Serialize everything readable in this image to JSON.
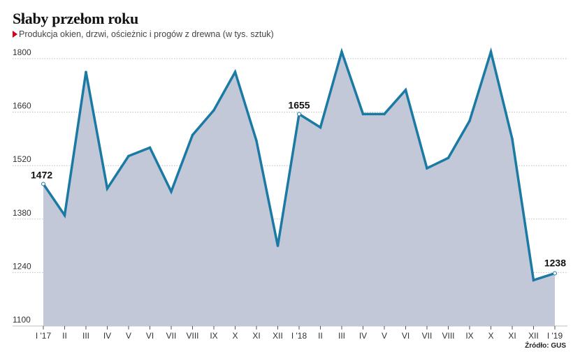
{
  "header": {
    "title": "Słaby przełom roku",
    "subtitle": "Produkcja okien, drzwi, ościeżnic i progów z drewna (w tys. sztuk)"
  },
  "footer": {
    "source": "Źródło: GUS"
  },
  "colors": {
    "line": "#1a7aa3",
    "area": "#c2c8d8",
    "grid": "#bdbdbd",
    "accent": "#d0021b"
  },
  "chart_data": {
    "type": "area",
    "title": "Słaby przełom roku",
    "subtitle": "Produkcja okien, drzwi, ościeżnic i progów z drewna (w tys. sztuk)",
    "xlabel": "",
    "ylabel": "",
    "ylim": [
      1100,
      1800
    ],
    "yticks": [
      1100,
      1240,
      1380,
      1520,
      1660,
      1800
    ],
    "grid": "horizontal dotted",
    "categories": [
      "I '17",
      "II",
      "III",
      "IV",
      "V",
      "VI",
      "VII",
      "VIII",
      "IX",
      "X",
      "XI",
      "XII",
      "I '18",
      "II",
      "III",
      "IV",
      "V",
      "VI",
      "VII",
      "VIII",
      "IX",
      "X",
      "XI",
      "XII",
      "I '19"
    ],
    "values": [
      1472,
      1390,
      1765,
      1460,
      1545,
      1567,
      1452,
      1600,
      1665,
      1765,
      1585,
      1310,
      1655,
      1620,
      1818,
      1655,
      1655,
      1718,
      1513,
      1540,
      1637,
      1818,
      1590,
      1220,
      1238
    ],
    "annotations": [
      {
        "index": 0,
        "label": "1472"
      },
      {
        "index": 12,
        "label": "1655"
      },
      {
        "index": 24,
        "label": "1238"
      }
    ]
  }
}
